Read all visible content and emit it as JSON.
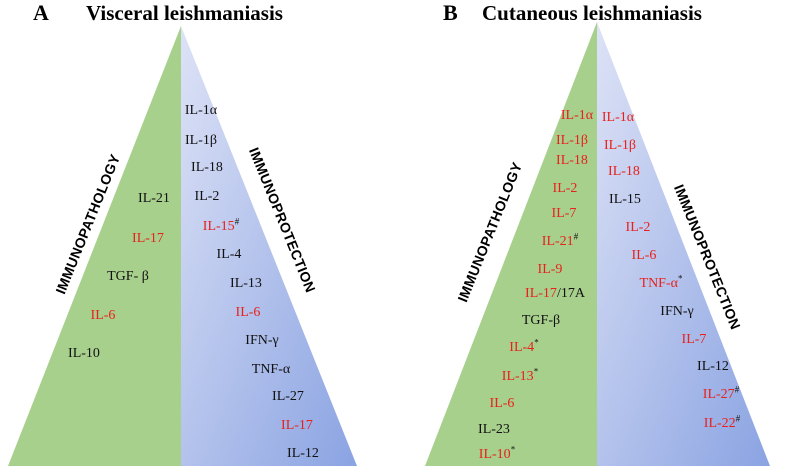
{
  "panelA": {
    "letter": "A",
    "title": "Visceral leishmaniasis",
    "left_label": "IMMUNOPATHOLOGY",
    "right_label": "IMMUNOPROTECTION",
    "left_items": [
      {
        "text": "IL-21",
        "mark": "",
        "color": "black"
      },
      {
        "text": "IL-17",
        "mark": "",
        "color": "red"
      },
      {
        "text": "TGF- β",
        "mark": "",
        "color": "black"
      },
      {
        "text": "IL-6",
        "mark": "",
        "color": "red"
      },
      {
        "text": "IL-10",
        "mark": "",
        "color": "black"
      }
    ],
    "right_items": [
      {
        "text": "IL-1α",
        "mark": "",
        "color": "black"
      },
      {
        "text": "IL-1β",
        "mark": "",
        "color": "black"
      },
      {
        "text": "IL-18",
        "mark": "",
        "color": "black"
      },
      {
        "text": "IL-2",
        "mark": "",
        "color": "black"
      },
      {
        "text": "IL-15",
        "mark": "#",
        "color": "red"
      },
      {
        "text": "IL-4",
        "mark": "",
        "color": "black"
      },
      {
        "text": "IL-13",
        "mark": "",
        "color": "black"
      },
      {
        "text": "IL-6",
        "mark": "",
        "color": "red"
      },
      {
        "text": "IFN-γ",
        "mark": "",
        "color": "black"
      },
      {
        "text": "TNF-α",
        "mark": "",
        "color": "black"
      },
      {
        "text": "IL-27",
        "mark": "",
        "color": "black"
      },
      {
        "text": "IL-17",
        "mark": "",
        "color": "red"
      },
      {
        "text": "IL-12",
        "mark": "",
        "color": "black"
      }
    ]
  },
  "panelB": {
    "letter": "B",
    "title": "Cutaneous leishmaniasis",
    "left_label": "IMMUNOPATHOLOGY",
    "right_label": "IMMUNOPROTECTION",
    "left_items": [
      {
        "text": "IL-1α",
        "mark": "",
        "color": "red"
      },
      {
        "text": "IL-1β",
        "mark": "",
        "color": "red"
      },
      {
        "text": "IL-18",
        "mark": "",
        "color": "red"
      },
      {
        "text": "IL-2",
        "mark": "",
        "color": "red"
      },
      {
        "text": "IL-7",
        "mark": "",
        "color": "red"
      },
      {
        "text": "IL-21",
        "mark": "#",
        "color": "red"
      },
      {
        "text": "IL-9",
        "mark": "",
        "color": "red"
      },
      {
        "text": "IL-17",
        "suffix": "/17A",
        "mark": "",
        "color": "red"
      },
      {
        "text": "TGF-β",
        "mark": "",
        "color": "black"
      },
      {
        "text": "IL-4",
        "mark": "*",
        "color": "red"
      },
      {
        "text": "IL-13",
        "mark": "*",
        "color": "red"
      },
      {
        "text": "IL-6",
        "mark": "",
        "color": "red"
      },
      {
        "text": "IL-23",
        "mark": "",
        "color": "black"
      },
      {
        "text": "IL-10",
        "mark": "*",
        "color": "red"
      }
    ],
    "right_items": [
      {
        "text": "IL-1α",
        "mark": "",
        "color": "red"
      },
      {
        "text": "IL-1β",
        "mark": "",
        "color": "red"
      },
      {
        "text": "IL-18",
        "mark": "",
        "color": "red"
      },
      {
        "text": "IL-15",
        "mark": "",
        "color": "black"
      },
      {
        "text": "IL-2",
        "mark": "",
        "color": "red"
      },
      {
        "text": "IL-6",
        "mark": "",
        "color": "red"
      },
      {
        "text": "TNF-α",
        "mark": "*",
        "color": "red"
      },
      {
        "text": "IFN-γ",
        "mark": "",
        "color": "black"
      },
      {
        "text": "IL-7",
        "mark": "",
        "color": "red"
      },
      {
        "text": "IL-12",
        "mark": "",
        "color": "black"
      },
      {
        "text": "IL-27",
        "mark": "#",
        "color": "red"
      },
      {
        "text": "IL-22",
        "mark": "#",
        "color": "red"
      }
    ]
  },
  "colors": {
    "pathology_fill": "#a8d08d",
    "protection_top": "#d6dcf4",
    "protection_bottom": "#8ea6e4",
    "red_text": "#e8211c",
    "black_text": "#111111"
  }
}
